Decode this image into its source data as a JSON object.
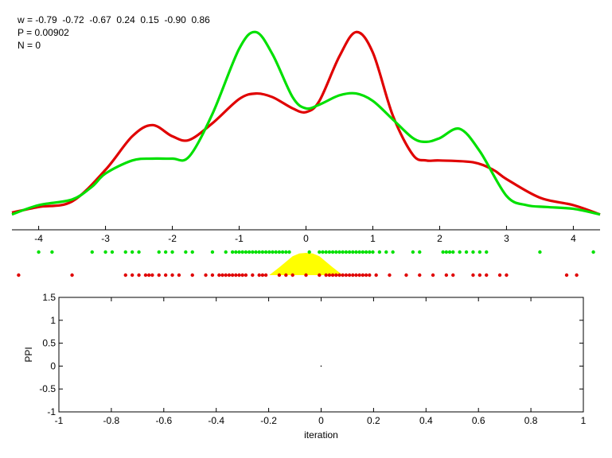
{
  "header": {
    "w_line": "w = -0.79  -0.72  -0.67  0.24  0.15  -0.90  0.86",
    "p_line": "P = 0.00902",
    "n_line": "N = 0"
  },
  "colors": {
    "red": "#e00000",
    "green": "#00e000",
    "yellow": "#ffff00",
    "axis": "#000000"
  },
  "chart_data": [
    {
      "type": "line",
      "title": "",
      "xlabel": "",
      "ylabel": "",
      "xlim": [
        -4.4,
        4.4
      ],
      "x_ticks": [
        -4,
        -3,
        -2,
        -1,
        0,
        1,
        2,
        3,
        4
      ],
      "x_tick_labels": [
        "-4",
        "-3",
        "-2",
        "-1",
        "0",
        "1",
        "2",
        "3",
        "4"
      ],
      "series": [
        {
          "name": "",
          "color": "red",
          "x": [
            -4.4,
            -4.0,
            -3.5,
            -3.0,
            -2.6,
            -2.3,
            -2.0,
            -1.75,
            -1.4,
            -1.0,
            -0.75,
            -0.5,
            -0.2,
            0.0,
            0.2,
            0.5,
            0.75,
            1.0,
            1.3,
            1.6,
            1.8,
            2.0,
            2.5,
            2.8,
            3.0,
            3.5,
            4.0,
            4.4
          ],
          "y": [
            0.02,
            0.05,
            0.08,
            0.25,
            0.43,
            0.49,
            0.43,
            0.41,
            0.5,
            0.63,
            0.66,
            0.64,
            0.58,
            0.56,
            0.62,
            0.86,
            0.99,
            0.88,
            0.54,
            0.33,
            0.3,
            0.3,
            0.29,
            0.25,
            0.2,
            0.1,
            0.06,
            0.01
          ]
        },
        {
          "name": "",
          "color": "green",
          "x": [
            -4.4,
            -4.0,
            -3.5,
            -3.2,
            -3.0,
            -2.6,
            -2.3,
            -2.0,
            -1.75,
            -1.4,
            -1.0,
            -0.75,
            -0.5,
            -0.2,
            0.0,
            0.2,
            0.5,
            0.75,
            1.0,
            1.3,
            1.6,
            1.8,
            2.0,
            2.3,
            2.6,
            3.0,
            3.3,
            3.6,
            4.0,
            4.4
          ],
          "y": [
            0.01,
            0.06,
            0.09,
            0.16,
            0.23,
            0.3,
            0.31,
            0.31,
            0.32,
            0.55,
            0.9,
            0.99,
            0.87,
            0.64,
            0.58,
            0.6,
            0.65,
            0.66,
            0.62,
            0.52,
            0.42,
            0.4,
            0.42,
            0.47,
            0.35,
            0.11,
            0.06,
            0.05,
            0.04,
            0.01
          ]
        }
      ],
      "green_points_x": [
        -4.0,
        -3.8,
        -3.2,
        -3.0,
        -2.9,
        -2.7,
        -2.6,
        -2.5,
        -2.2,
        -2.1,
        -2.0,
        -1.8,
        -1.7,
        -1.4,
        -1.2,
        -1.1,
        -1.05,
        -1.0,
        -0.95,
        -0.9,
        -0.85,
        -0.8,
        -0.75,
        -0.7,
        -0.65,
        -0.6,
        -0.55,
        -0.5,
        -0.45,
        -0.4,
        -0.35,
        -0.3,
        -0.25,
        0.05,
        0.2,
        0.25,
        0.3,
        0.35,
        0.4,
        0.45,
        0.5,
        0.55,
        0.6,
        0.65,
        0.7,
        0.75,
        0.8,
        0.85,
        0.9,
        0.95,
        1.0,
        1.1,
        1.2,
        1.3,
        1.6,
        1.7,
        2.05,
        2.1,
        2.15,
        2.2,
        2.3,
        2.4,
        2.5,
        2.6,
        2.7,
        3.5,
        4.3
      ],
      "red_points_x": [
        -4.3,
        -3.5,
        -2.7,
        -2.6,
        -2.5,
        -2.4,
        -2.35,
        -2.3,
        -2.2,
        -2.1,
        -2.0,
        -1.9,
        -1.7,
        -1.5,
        -1.4,
        -1.3,
        -1.25,
        -1.2,
        -1.15,
        -1.1,
        -1.05,
        -1.0,
        -0.95,
        -0.9,
        -0.8,
        -0.7,
        -0.65,
        -0.6,
        -0.4,
        -0.3,
        -0.2,
        0.0,
        0.2,
        0.3,
        0.35,
        0.4,
        0.45,
        0.5,
        0.55,
        0.6,
        0.65,
        0.7,
        0.75,
        0.8,
        0.85,
        0.9,
        0.95,
        1.05,
        1.25,
        1.5,
        1.7,
        1.9,
        2.1,
        2.2,
        2.5,
        2.6,
        2.7,
        2.9,
        3.0,
        3.9,
        4.05
      ],
      "yellow_band": {
        "x": [
          -0.55,
          -0.4,
          -0.3,
          -0.2,
          -0.1,
          0.0,
          0.1,
          0.2,
          0.3,
          0.4,
          0.55
        ],
        "height": [
          0.0,
          0.35,
          0.6,
          0.85,
          0.97,
          1.0,
          0.97,
          0.85,
          0.6,
          0.35,
          0.0
        ]
      }
    },
    {
      "type": "scatter",
      "title": "",
      "xlabel": "iteration",
      "ylabel": "PPI",
      "xlim": [
        -1,
        1
      ],
      "ylim": [
        -1,
        1.5
      ],
      "x_ticks": [
        -1,
        -0.8,
        -0.6,
        -0.4,
        -0.2,
        0,
        0.2,
        0.4,
        0.6,
        0.8,
        1
      ],
      "x_tick_labels": [
        "-1",
        "-0.8",
        "-0.6",
        "-0.4",
        "-0.2",
        "0",
        "0.2",
        "0.4",
        "0.6",
        "0.8",
        "1"
      ],
      "y_ticks": [
        -1,
        -0.5,
        0,
        0.5,
        1,
        1.5
      ],
      "y_tick_labels": [
        "-1",
        "-0.5",
        "0",
        "0.5",
        "1",
        "1.5"
      ],
      "points": [
        {
          "x": 0,
          "y": 0
        }
      ]
    }
  ]
}
